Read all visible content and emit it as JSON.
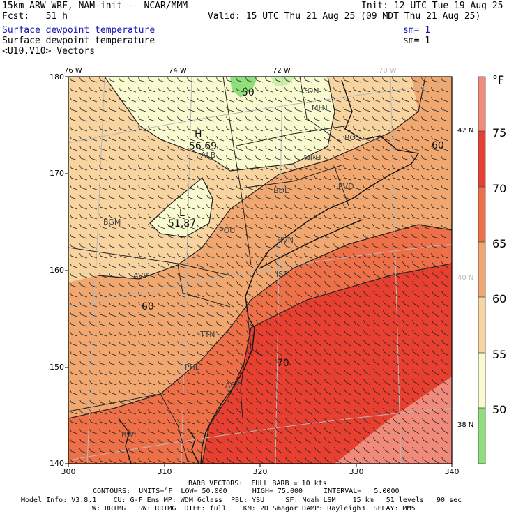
{
  "header": {
    "model_line": "15km ARW WRF, NAM-init -- NCAR/MMM",
    "init": "Init: 12 UTC Tue 19 Aug 25",
    "fcst": "Fcst:   51 h",
    "valid": "Valid: 15 UTC Thu 21 Aug 25 (09 MDT Thu 21 Aug 25)",
    "field1": "Surface dewpoint temperature",
    "sm1": "sm= 1",
    "field2": "Surface dewpoint temperature",
    "sm2": "sm= 1",
    "vectors": "<U10,V10> Vectors"
  },
  "map": {
    "top_lon_labels": [
      "76 W",
      "74 W",
      "72 W",
      "70 W"
    ],
    "right_lat_labels": [
      "42 N",
      "40 N",
      "38 N"
    ],
    "x_ticks": [
      "300",
      "310",
      "320",
      "330",
      "340"
    ],
    "y_ticks": [
      "180",
      "170",
      "160",
      "150",
      "140"
    ],
    "stations": [
      "CON",
      "MHT",
      "BOS",
      "ALB",
      "ORH",
      "BDL",
      "PVD",
      "BGM",
      "POU",
      "HVN",
      "ISP",
      "AVP",
      "TTN",
      "PHL",
      "ACY",
      "BWI"
    ],
    "contour_labels": [
      "50",
      "60",
      "60",
      "70"
    ],
    "extrema": [
      {
        "symbol": "H",
        "value": "56.69"
      },
      {
        "symbol": "L",
        "value": "51.87"
      }
    ],
    "colors": {
      "lt45": "#8fe07a",
      "45_50": "#c8f0a8",
      "50_55": "#fafad0",
      "55_60": "#f8d4a0",
      "60_65": "#f0a870",
      "65_70": "#ee7048",
      "70_75": "#e84030",
      "gt75": "#f08a7a"
    }
  },
  "colorbar": {
    "unit": "°F",
    "labels": [
      "75",
      "70",
      "65",
      "60",
      "55",
      "50"
    ]
  },
  "footer": {
    "barb": "BARB VECTORS:  FULL BARB = 10 kts",
    "contours": "CONTOURS:  UNITS=°F  LOW= 50.000      HIGH= 75.000     INTERVAL=   5.0000",
    "model_info": "Model Info: V3.8.1    CU: G-F Ens MP: WDM 6class  PBL: YSU     SF: Noah LSM    15 km   51 levels   90 sec",
    "physics": "LW: RRTMG   SW: RRTMG  DIFF: full    KM: 2D Smagor DAMP: Rayleigh3  SFLAY: MM5"
  }
}
